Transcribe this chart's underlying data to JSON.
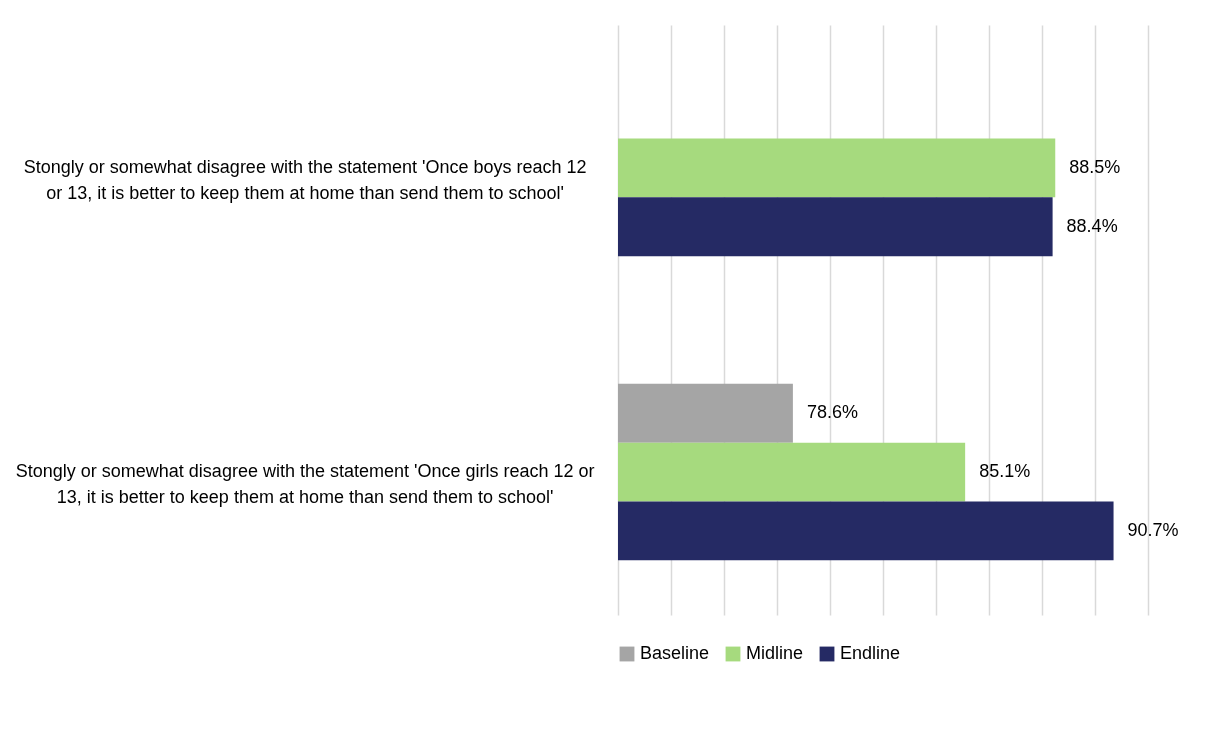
{
  "chart_data": {
    "type": "bar",
    "orientation": "horizontal",
    "categories": [
      "Stongly or somewhat disagree with the statement 'Once boys reach 12 or 13, it is better to keep them at home than send them to school'",
      "Stongly or somewhat disagree with the statement 'Once girls reach 12 or 13, it is better to keep them at home than send them to school'"
    ],
    "series": [
      {
        "name": "Baseline",
        "color": "#a5a5a5",
        "values": [
          null,
          78.6
        ],
        "value_labels": [
          null,
          "78.6%"
        ]
      },
      {
        "name": "Midline",
        "color": "#a6da7e",
        "values": [
          88.5,
          85.1
        ],
        "value_labels": [
          "88.5%",
          "85.1%"
        ]
      },
      {
        "name": "Endline",
        "color": "#252a64",
        "values": [
          88.4,
          90.7
        ],
        "value_labels": [
          "88.4%",
          "90.7%"
        ]
      }
    ],
    "xlim": [
      72,
      92
    ],
    "xticks": [
      {
        "value": 72,
        "label": null
      },
      {
        "value": 74,
        "label": null
      },
      {
        "value": 76,
        "label": null
      },
      {
        "value": 78,
        "label": null
      },
      {
        "value": 80,
        "label": null
      },
      {
        "value": 82,
        "label": null
      },
      {
        "value": 84,
        "label": null
      },
      {
        "value": 86,
        "label": null
      },
      {
        "value": 88,
        "label": null
      },
      {
        "value": 90,
        "label": null
      },
      {
        "value": 92,
        "label": null
      }
    ],
    "grid": "x",
    "tick_labels": "y",
    "legend": "bottom"
  }
}
